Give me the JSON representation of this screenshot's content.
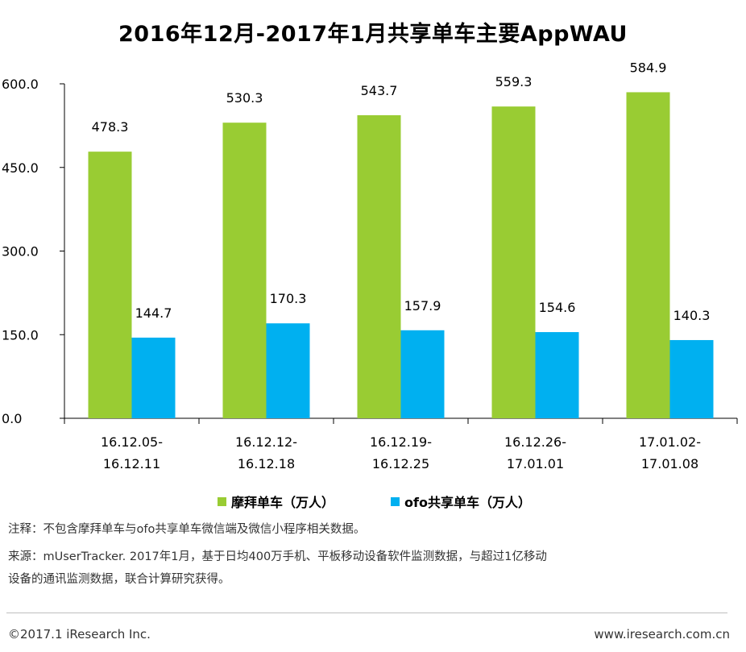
{
  "chart_data": {
    "type": "bar",
    "title": "2016年12月-2017年1月共享单车主要AppWAU",
    "categories": [
      [
        "16.12.05-",
        "16.12.11"
      ],
      [
        "16.12.12-",
        "16.12.18"
      ],
      [
        "16.12.19-",
        "16.12.25"
      ],
      [
        "16.12.26-",
        "17.01.01"
      ],
      [
        "17.01.02-",
        "17.01.08"
      ]
    ],
    "series": [
      {
        "name": "摩拜单车（万人）",
        "color": "#99cc33",
        "values": [
          478.3,
          530.3,
          543.7,
          559.3,
          584.9
        ]
      },
      {
        "name": "ofo共享单车（万人）",
        "color": "#00b0f0",
        "values": [
          144.7,
          170.3,
          157.9,
          154.6,
          140.3
        ]
      }
    ],
    "ylim": [
      0,
      600
    ],
    "yticks": [
      "0.0",
      "150.0",
      "300.0",
      "450.0",
      "600.0"
    ],
    "xlabel": "",
    "ylabel": "",
    "grid": false,
    "legend_position": "bottom"
  },
  "notes": {
    "note1": "注释：不包含摩拜单车与ofo共享单车微信端及微信小程序相关数据。",
    "source_line1": "来源：mUserTracker. 2017年1月，基于日均400万手机、平板移动设备软件监测数据，与超过1亿移动",
    "source_line2": "设备的通讯监测数据，联合计算研究获得。"
  },
  "footer": {
    "copyright": "©2017.1 iResearch Inc.",
    "website": "www.iresearch.com.cn"
  }
}
